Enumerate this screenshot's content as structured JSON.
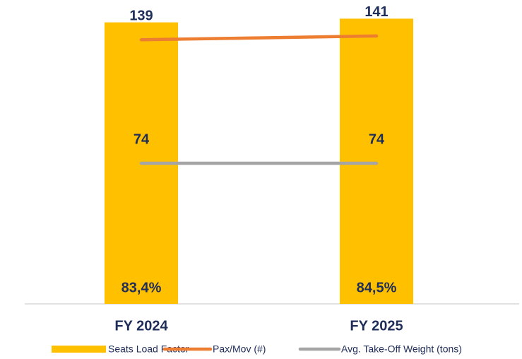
{
  "chart_data": {
    "type": "combo",
    "categories": [
      "FY 2024",
      "FY 2025"
    ],
    "ylim": [
      0,
      85
    ],
    "y2lim": [
      0,
      151
    ],
    "series": [
      {
        "name": "Seats Load Factor",
        "type": "bar",
        "color": "#ffc000",
        "values": [
          83.4,
          84.5
        ],
        "value_labels": [
          "83,4%",
          "84,5%"
        ]
      },
      {
        "name": "Pax/Mov (#)",
        "type": "line",
        "axis": "y2",
        "color": "#ed7d31",
        "values": [
          139,
          141
        ]
      },
      {
        "name": "Avg. Take-Off Weight (tons)",
        "type": "line",
        "axis": "y2",
        "color": "#a5a5a5",
        "values": [
          74,
          74
        ]
      }
    ]
  }
}
